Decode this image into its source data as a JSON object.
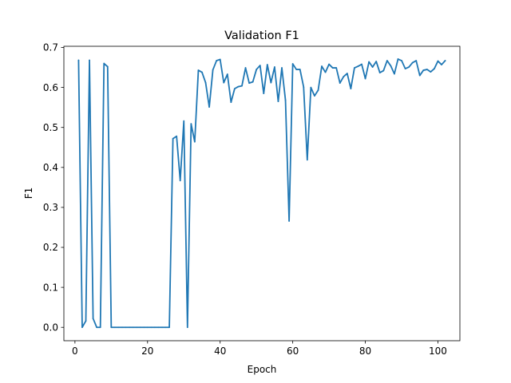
{
  "chart_data": {
    "type": "line",
    "title": "Validation F1",
    "xlabel": "Epoch",
    "ylabel": "F1",
    "xlim": [
      -3.05,
      106.05
    ],
    "ylim": [
      -0.0335,
      0.703
    ],
    "xticks": [
      0,
      20,
      40,
      60,
      80,
      100
    ],
    "yticks": [
      0.0,
      0.1,
      0.2,
      0.3,
      0.4,
      0.5,
      0.6,
      0.7
    ],
    "xtick_labels": [
      "0",
      "20",
      "40",
      "60",
      "80",
      "100"
    ],
    "ytick_labels": [
      "0.0",
      "0.1",
      "0.2",
      "0.3",
      "0.4",
      "0.5",
      "0.6",
      "0.7"
    ],
    "grid": false,
    "legend": "none",
    "series": [
      {
        "color": "#1f77b4",
        "x": [
          1,
          2,
          3,
          4,
          5,
          6,
          7,
          8,
          9,
          10,
          11,
          12,
          13,
          14,
          15,
          16,
          17,
          18,
          19,
          20,
          21,
          22,
          23,
          24,
          25,
          26,
          27,
          28,
          29,
          30,
          31,
          32,
          33,
          34,
          35,
          36,
          37,
          38,
          39,
          40,
          41,
          42,
          43,
          44,
          45,
          46,
          47,
          48,
          49,
          50,
          51,
          52,
          53,
          54,
          55,
          56,
          57,
          58,
          59,
          60,
          61,
          62,
          63,
          64,
          65,
          66,
          67,
          68,
          69,
          70,
          71,
          72,
          73,
          74,
          75,
          76,
          77,
          78,
          79,
          80,
          81,
          82,
          83,
          84,
          85,
          86,
          87,
          88,
          89,
          90,
          91,
          92,
          93,
          94,
          95,
          96,
          97,
          98,
          99,
          100,
          101,
          102
        ],
        "y": [
          0.668,
          0.0,
          0.016,
          0.668,
          0.022,
          0.0,
          0.0,
          0.66,
          0.652,
          0.0,
          0.0,
          0.0,
          0.0,
          0.0,
          0.0,
          0.0,
          0.0,
          0.0,
          0.0,
          0.0,
          0.0,
          0.0,
          0.0,
          0.0,
          0.0,
          0.0,
          0.472,
          0.478,
          0.367,
          0.516,
          0.0,
          0.509,
          0.464,
          0.643,
          0.638,
          0.612,
          0.551,
          0.644,
          0.667,
          0.67,
          0.612,
          0.633,
          0.563,
          0.597,
          0.602,
          0.604,
          0.649,
          0.611,
          0.614,
          0.645,
          0.655,
          0.585,
          0.657,
          0.612,
          0.651,
          0.565,
          0.649,
          0.568,
          0.266,
          0.659,
          0.645,
          0.645,
          0.601,
          0.419,
          0.6,
          0.579,
          0.593,
          0.653,
          0.638,
          0.658,
          0.649,
          0.649,
          0.611,
          0.627,
          0.635,
          0.597,
          0.649,
          0.653,
          0.658,
          0.622,
          0.664,
          0.651,
          0.665,
          0.637,
          0.642,
          0.667,
          0.654,
          0.634,
          0.671,
          0.667,
          0.647,
          0.651,
          0.662,
          0.667,
          0.63,
          0.643,
          0.645,
          0.639,
          0.647,
          0.666,
          0.657,
          0.667
        ]
      }
    ]
  }
}
